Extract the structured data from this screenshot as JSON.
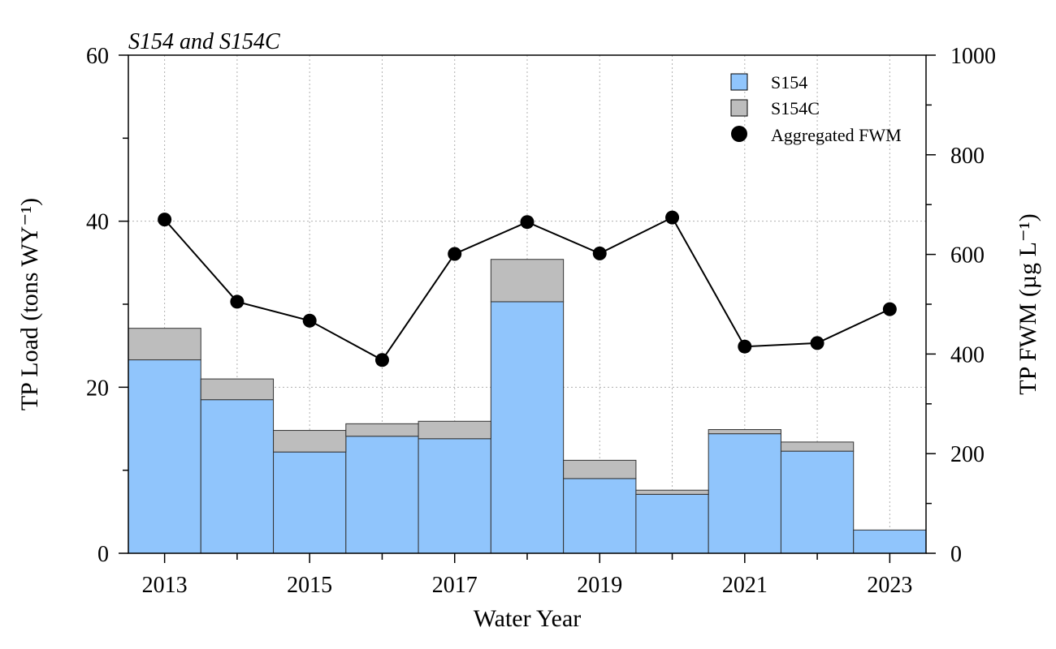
{
  "chart_data": {
    "type": "bar",
    "title": "S154 and S154C",
    "xlabel": "Water Year",
    "ylabel": "TP Load (tons WY⁻¹)",
    "y2label": "TP FWM (µg L⁻¹)",
    "categories": [
      "2013",
      "2014",
      "2015",
      "2016",
      "2017",
      "2018",
      "2019",
      "2020",
      "2021",
      "2022",
      "2023"
    ],
    "x_tick_labels": [
      "2013",
      "2015",
      "2017",
      "2019",
      "2021",
      "2023"
    ],
    "ylim": [
      0,
      60
    ],
    "y_ticks": [
      0,
      20,
      40,
      60
    ],
    "y2lim": [
      0,
      1000
    ],
    "y2_ticks": [
      0,
      200,
      400,
      600,
      800,
      1000
    ],
    "grid": true,
    "legend_position": "top-right",
    "stacked": true,
    "series": [
      {
        "name": "S154",
        "kind": "bar",
        "color": "#90c5fc",
        "values": [
          23.3,
          18.5,
          12.2,
          14.1,
          13.8,
          30.3,
          9.0,
          7.1,
          14.4,
          12.3,
          2.8
        ]
      },
      {
        "name": "S154C",
        "kind": "bar",
        "color": "#bdbdbd",
        "values": [
          3.8,
          2.5,
          2.6,
          1.5,
          2.1,
          5.1,
          2.2,
          0.5,
          0.5,
          1.1,
          0.0
        ]
      },
      {
        "name": "Aggregated FWM",
        "kind": "line",
        "axis": "right",
        "color": "#000000",
        "values": [
          670,
          505,
          467,
          388,
          601,
          665,
          602,
          674,
          415,
          422,
          490
        ]
      }
    ]
  }
}
